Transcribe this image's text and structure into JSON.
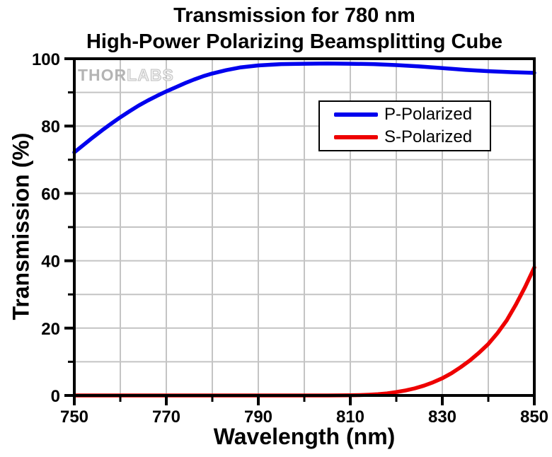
{
  "title": {
    "line1": "Transmission for 780 nm",
    "line2": "High-Power Polarizing Beamsplitting Cube"
  },
  "watermark": {
    "part1": "THOR",
    "part2": "LABS"
  },
  "legend": {
    "items": [
      {
        "label": "P-Polarized",
        "color": "#0000EE"
      },
      {
        "label": "S-Polarized",
        "color": "#EE0000"
      }
    ]
  },
  "axes": {
    "x": {
      "label": "Wavelength (nm)",
      "major_ticks": [
        750,
        770,
        790,
        810,
        830,
        850
      ],
      "minor_ticks": [
        760,
        780,
        800,
        820,
        840
      ],
      "gridlines": [
        760,
        770,
        780,
        790,
        800,
        810,
        820,
        830,
        840
      ]
    },
    "y": {
      "label": "Transmission (%)",
      "major_ticks": [
        0,
        20,
        40,
        60,
        80,
        100
      ],
      "minor_ticks": [
        10,
        30,
        50,
        70,
        90
      ],
      "gridlines": [
        10,
        20,
        30,
        40,
        50,
        60,
        70,
        80,
        90
      ]
    }
  },
  "colors": {
    "grid": "#c4c4c4",
    "frame": "#000000",
    "background": "#ffffff",
    "p_polarized": "#0000EE",
    "s_polarized": "#EE0000",
    "watermark": "#b4b4b4"
  },
  "chart_data": {
    "type": "line",
    "title": "Transmission for 780 nm High-Power Polarizing Beamsplitting Cube",
    "xlabel": "Wavelength (nm)",
    "ylabel": "Transmission (%)",
    "xlim": [
      750,
      850
    ],
    "ylim": [
      0,
      100
    ],
    "grid": true,
    "legend_position": "upper right inside",
    "series": [
      {
        "name": "P-Polarized",
        "color": "#0000EE",
        "x": [
          750,
          752,
          754,
          756,
          758,
          760,
          762,
          764,
          766,
          768,
          770,
          772,
          774,
          776,
          778,
          780,
          783,
          786,
          790,
          795,
          800,
          805,
          810,
          815,
          820,
          825,
          830,
          835,
          840,
          845,
          850
        ],
        "y": [
          72.2,
          74.4,
          76.6,
          78.7,
          80.7,
          82.6,
          84.4,
          86.1,
          87.6,
          89.0,
          90.3,
          91.5,
          92.7,
          93.8,
          94.8,
          95.6,
          96.6,
          97.4,
          98.0,
          98.4,
          98.5,
          98.6,
          98.5,
          98.4,
          98.1,
          97.7,
          97.2,
          96.7,
          96.3,
          96.0,
          95.8
        ]
      },
      {
        "name": "S-Polarized",
        "color": "#EE0000",
        "x": [
          750,
          770,
          790,
          800,
          805,
          810,
          812,
          814,
          816,
          818,
          820,
          822,
          824,
          826,
          828,
          830,
          832,
          834,
          836,
          838,
          840,
          842,
          844,
          846,
          848,
          850
        ],
        "y": [
          0,
          0,
          0,
          0,
          0,
          0.05,
          0.1,
          0.2,
          0.35,
          0.6,
          1.0,
          1.5,
          2.1,
          2.9,
          3.9,
          5.1,
          6.6,
          8.4,
          10.4,
          12.7,
          15.3,
          18.5,
          22.3,
          27.0,
          32.2,
          38.0
        ]
      }
    ]
  }
}
